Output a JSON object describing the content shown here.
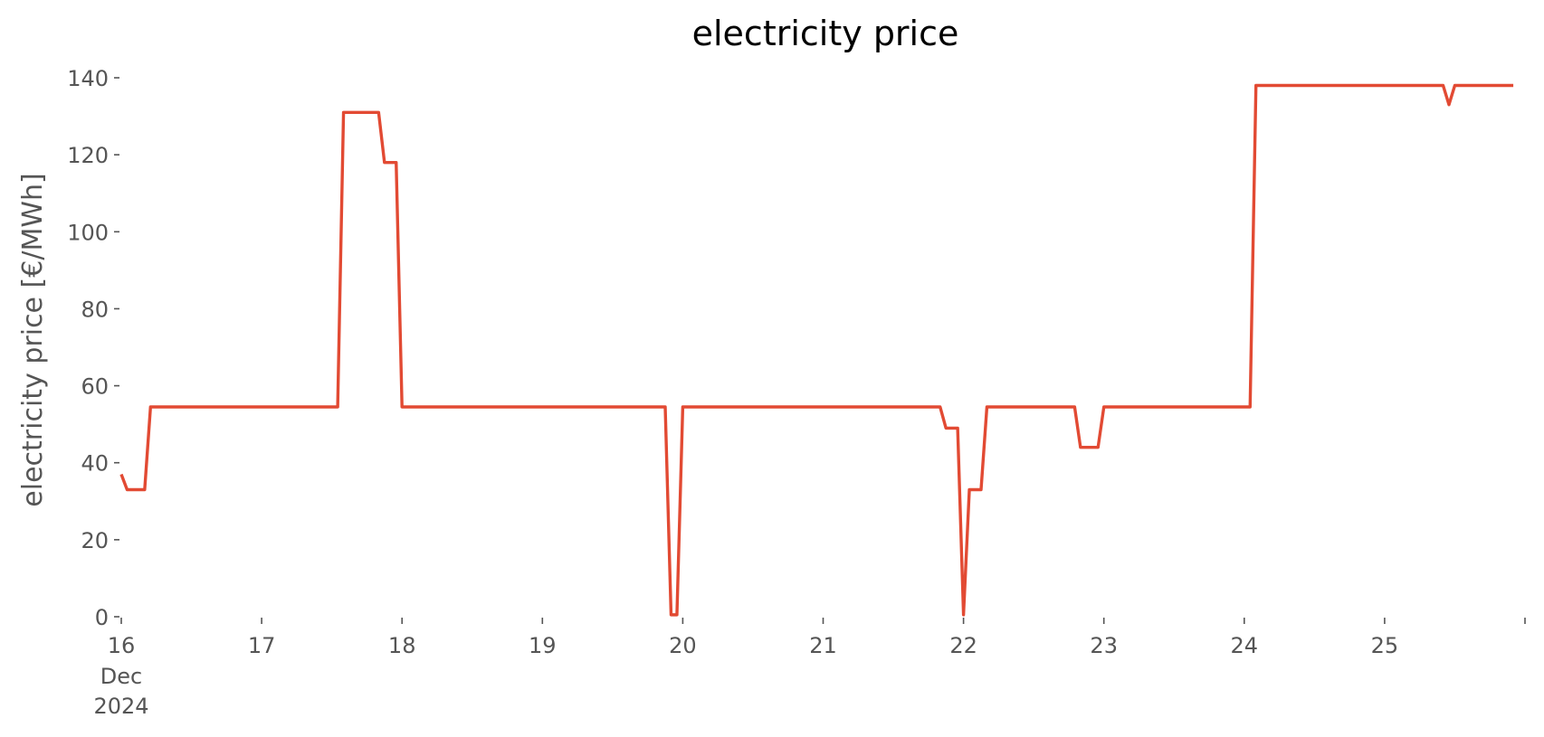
{
  "chart_data": {
    "type": "line",
    "title": "electricity price",
    "xlabel": "",
    "ylabel": "electricity price [€/MWh]",
    "ylim": [
      0,
      140
    ],
    "xlim": [
      "2024-12-16T00:00",
      "2024-12-25T22:00"
    ],
    "y_ticks": [
      0,
      20,
      40,
      60,
      80,
      100,
      120,
      140
    ],
    "x_ticks": [
      {
        "date": "2024-12-16T00:00",
        "label": "16",
        "sublabel_1": "Dec",
        "sublabel_2": "2024"
      },
      {
        "date": "2024-12-17T00:00",
        "label": "17"
      },
      {
        "date": "2024-12-18T00:00",
        "label": "18"
      },
      {
        "date": "2024-12-19T00:00",
        "label": "19"
      },
      {
        "date": "2024-12-20T00:00",
        "label": "20"
      },
      {
        "date": "2024-12-21T00:00",
        "label": "21"
      },
      {
        "date": "2024-12-22T00:00",
        "label": "22"
      },
      {
        "date": "2024-12-23T00:00",
        "label": "23"
      },
      {
        "date": "2024-12-24T00:00",
        "label": "24"
      },
      {
        "date": "2024-12-25T00:00",
        "label": "25"
      },
      {
        "date": "2024-12-26T00:00",
        "label": ""
      }
    ],
    "grid": false,
    "series": [
      {
        "color": "#e24a33",
        "points": [
          [
            "2024-12-16T00:00",
            37
          ],
          [
            "2024-12-16T01:00",
            33
          ],
          [
            "2024-12-16T02:00",
            33
          ],
          [
            "2024-12-16T03:00",
            33
          ],
          [
            "2024-12-16T04:00",
            33
          ],
          [
            "2024-12-16T05:00",
            54.5
          ],
          [
            "2024-12-17T13:00",
            54.5
          ],
          [
            "2024-12-17T14:00",
            131
          ],
          [
            "2024-12-17T20:00",
            131
          ],
          [
            "2024-12-17T21:00",
            118
          ],
          [
            "2024-12-17T23:00",
            118
          ],
          [
            "2024-12-18T00:00",
            54.5
          ],
          [
            "2024-12-19T21:00",
            54.5
          ],
          [
            "2024-12-19T22:00",
            0.5
          ],
          [
            "2024-12-19T23:00",
            0.5
          ],
          [
            "2024-12-20T00:00",
            54.5
          ],
          [
            "2024-12-21T20:00",
            54.5
          ],
          [
            "2024-12-21T21:00",
            49
          ],
          [
            "2024-12-21T23:00",
            49
          ],
          [
            "2024-12-22T00:00",
            0.5
          ],
          [
            "2024-12-22T01:00",
            33
          ],
          [
            "2024-12-22T03:00",
            33
          ],
          [
            "2024-12-22T04:00",
            54.5
          ],
          [
            "2024-12-22T19:00",
            54.5
          ],
          [
            "2024-12-22T20:00",
            44
          ],
          [
            "2024-12-22T23:00",
            44
          ],
          [
            "2024-12-23T00:00",
            54.5
          ],
          [
            "2024-12-24T01:00",
            54.5
          ],
          [
            "2024-12-24T02:00",
            138
          ],
          [
            "2024-12-25T10:00",
            138
          ],
          [
            "2024-12-25T11:00",
            133
          ],
          [
            "2024-12-25T12:00",
            138
          ],
          [
            "2024-12-25T22:00",
            138
          ]
        ]
      }
    ]
  }
}
